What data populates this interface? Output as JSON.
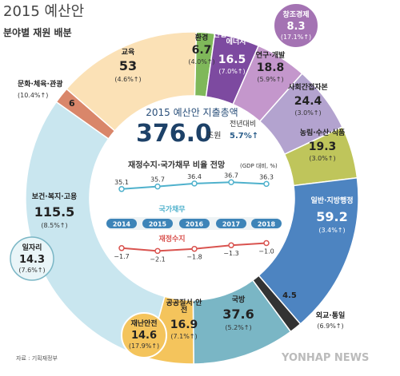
{
  "title": "2015 예산안",
  "subtitle": "분야별 재원 배분",
  "total": {
    "label": "2015 예산안 지출총액",
    "value": "376.0",
    "unit": "조원",
    "change_label": "전년대비",
    "change": "5.7%↑"
  },
  "inner_chart_title": "재정수지·국가채무 비율 전망",
  "inner_chart_unit": "(GDP 대비, %)",
  "source": "자료 : 기획재정부",
  "credit": "YONHAP NEWS",
  "colors": {
    "welfare": "#c9e6ef",
    "education": "#fbe1b6",
    "culture": "#d9866a",
    "environment": "#7fb85a",
    "industry": "#7d4aa0",
    "rnd": "#c497cc",
    "soc": "#b3a3cf",
    "agri": "#bfc55b",
    "admin": "#4d84c1",
    "foreign": "#333333",
    "defense": "#7ab6c5",
    "safety": "#f4c45c",
    "line_debt": "#4fb1cc",
    "line_balance": "#d9534f"
  },
  "chart_data": [
    {
      "type": "pie",
      "title": "2015 예산안 분야별 재원 배분",
      "categories": [
        "환경",
        "산업·중소기업·에너지",
        "연구·개발",
        "사회간접자본",
        "농림·수산·식품",
        "일반·지방행정",
        "외교·통일",
        "국방",
        "공공질서·안전",
        "보건·복지·고용",
        "문화·체육·관광",
        "교육"
      ],
      "values": [
        6.7,
        16.5,
        18.8,
        24.4,
        19.3,
        59.2,
        4.5,
        37.6,
        16.9,
        115.5,
        6.0,
        53.0
      ],
      "changes": [
        "(4.0%↑)",
        "(7.0%↑)",
        "(5.9%↑)",
        "(3.0%↑)",
        "(3.0%↑)",
        "(3.4%↑)",
        "(6.9%↑)",
        "(5.2%↑)",
        "(7.1%↑)",
        "(8.5%↑)",
        "(10.4%↑)",
        "(4.6%↑)"
      ],
      "sub_items": [
        {
          "label": "창조경제",
          "value": "8.3",
          "change": "(17.1%↑)"
        },
        {
          "label": "일자리",
          "value": "14.3",
          "change": "(7.6%↑)"
        },
        {
          "label": "재난안전",
          "value": "14.6",
          "change": "(17.9%↑)"
        }
      ]
    },
    {
      "type": "line",
      "title": "재정수지·국가채무 비율 전망",
      "ylabel": "GDP 대비, %",
      "x": [
        "2014",
        "2015",
        "2016",
        "2017",
        "2018"
      ],
      "series": [
        {
          "name": "국가채무",
          "values": [
            35.1,
            35.7,
            36.4,
            36.7,
            36.3
          ],
          "labels": [
            "35.1",
            "35.7",
            "36.4",
            "36.7",
            "36.3"
          ]
        },
        {
          "name": "재정수지",
          "values": [
            -1.7,
            -2.1,
            -1.8,
            -1.3,
            -1.0
          ],
          "labels": [
            "−1.7",
            "−2.1",
            "−1.8",
            "−1.3",
            "−1.0"
          ]
        }
      ]
    }
  ]
}
